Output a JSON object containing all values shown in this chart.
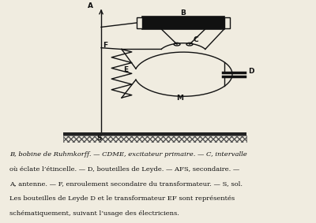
{
  "bg_color": "#f0ece0",
  "text_color": "#111111",
  "caption_line1": "B, bobine de Ruhmkorff. — CDME, excitateur primaire. — C, intervalle",
  "caption_line2": "où éclate l’étincelle. — D, bouteilles de Leyde. — AFS, secondaire. —",
  "caption_line3": "A, antenne. — F, enroulement secondaire du transformateur. — S, sol.",
  "caption_line4": "Les bouteilles de Leyde D et le transformateur EF sont représentés",
  "caption_line5": "schématiquement, suivant l’usage des électriciens.",
  "figsize": [
    4.0,
    2.83
  ],
  "dpi": 100
}
